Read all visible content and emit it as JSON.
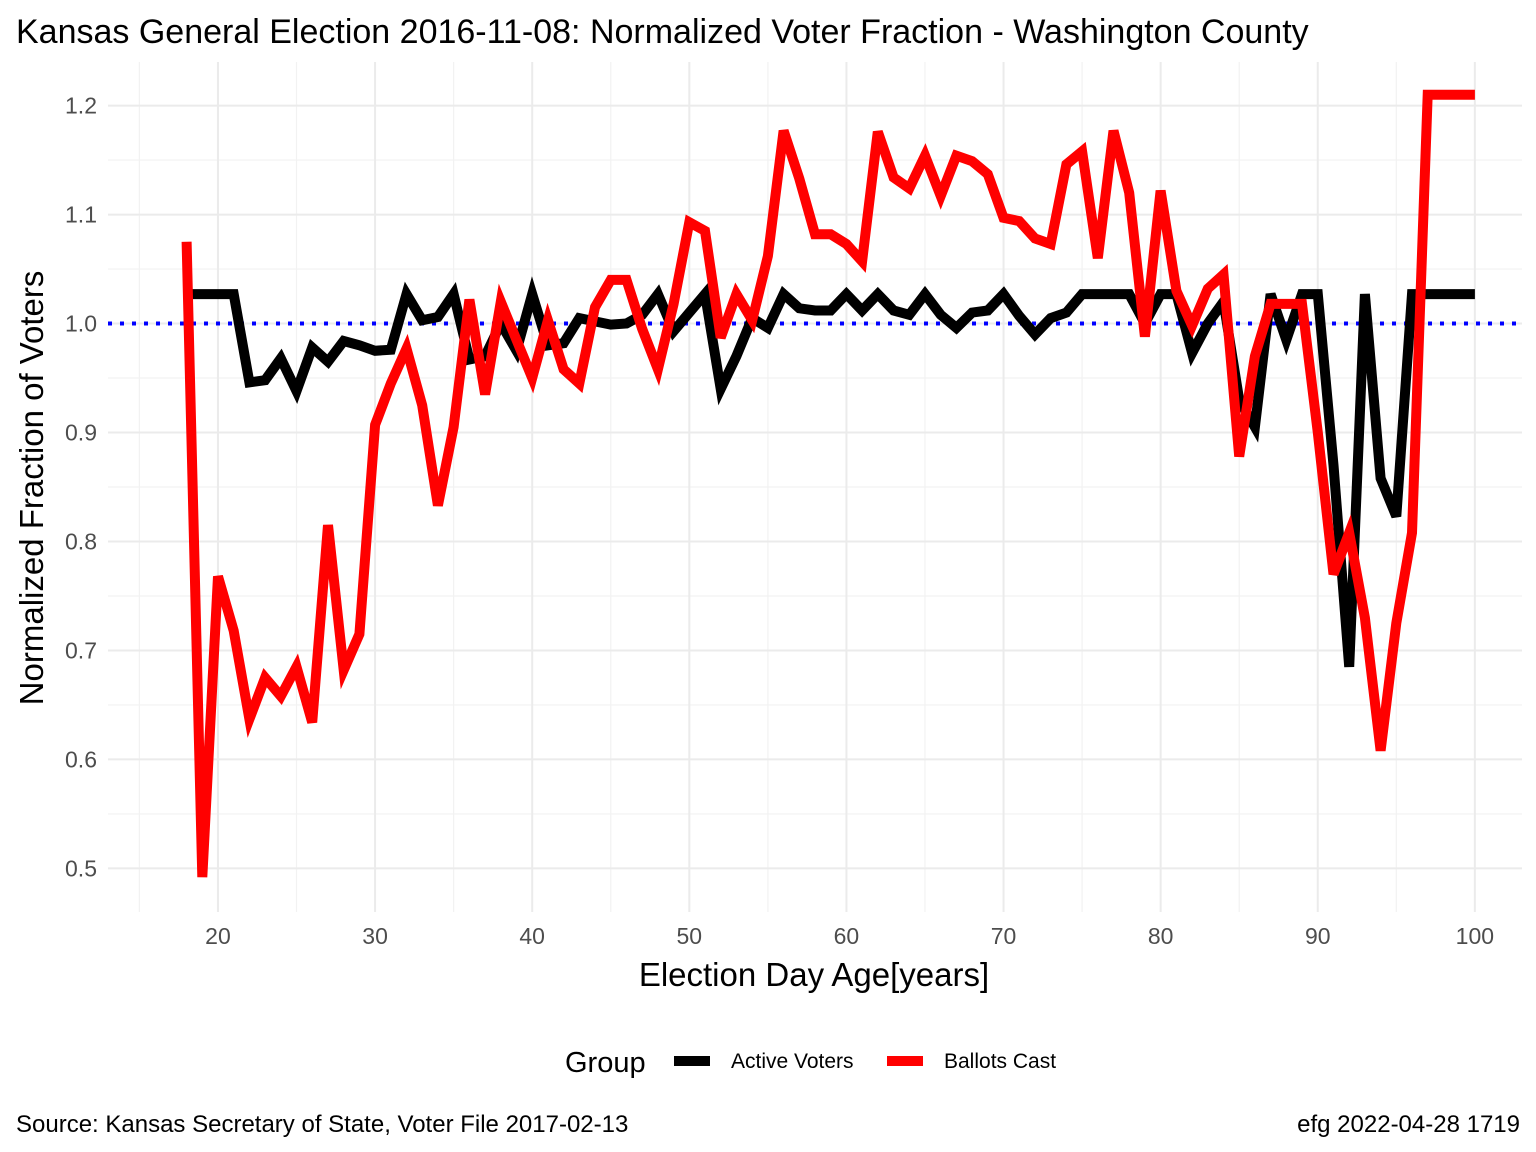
{
  "chart_data": {
    "type": "line",
    "title": "Kansas General Election 2016-11-08:  Normalized Voter Fraction - Washington County",
    "xlabel": "Election Day Age[years]",
    "ylabel": "Normalized Fraction of Voters",
    "xlim": [
      13,
      103
    ],
    "ylim": [
      0.46,
      1.24
    ],
    "x_ticks": [
      20,
      30,
      40,
      50,
      60,
      70,
      80,
      90,
      100
    ],
    "y_ticks": [
      0.5,
      0.6,
      0.7,
      0.8,
      0.9,
      1.0,
      1.1,
      1.2
    ],
    "x_tick_labels": [
      "20",
      "30",
      "40",
      "50",
      "60",
      "70",
      "80",
      "90",
      "100"
    ],
    "y_tick_labels": [
      "0.5",
      "0.6",
      "0.7",
      "0.8",
      "0.9",
      "1.0",
      "1.1",
      "1.2"
    ],
    "grid": true,
    "legend_position": "bottom",
    "legend_title": "Group",
    "reference_line": {
      "y": 1.0,
      "color": "#0000ff",
      "style": "dotted"
    },
    "series": [
      {
        "name": "Active Voters",
        "color": "#000000",
        "x": [
          18,
          19,
          20,
          21,
          22,
          23,
          24,
          25,
          26,
          27,
          28,
          29,
          30,
          31,
          32,
          33,
          34,
          35,
          36,
          37,
          38,
          39,
          40,
          41,
          42,
          43,
          44,
          45,
          46,
          47,
          48,
          49,
          50,
          51,
          52,
          53,
          54,
          55,
          56,
          57,
          58,
          59,
          60,
          61,
          62,
          63,
          64,
          65,
          66,
          67,
          68,
          69,
          70,
          71,
          72,
          73,
          74,
          75,
          76,
          77,
          78,
          79,
          80,
          81,
          82,
          83,
          84,
          85,
          86,
          87,
          88,
          89,
          90,
          91,
          92,
          93,
          94,
          95,
          96,
          97,
          98,
          99,
          100
        ],
        "values": [
          1.027,
          1.027,
          1.027,
          1.027,
          0.946,
          0.948,
          0.968,
          0.938,
          0.978,
          0.965,
          0.984,
          0.98,
          0.975,
          0.976,
          1.027,
          1.003,
          1.006,
          1.027,
          0.967,
          0.97,
          1.0,
          0.975,
          1.027,
          0.98,
          0.982,
          1.005,
          1.002,
          0.999,
          1.0,
          1.008,
          1.027,
          0.993,
          1.01,
          1.027,
          0.94,
          0.97,
          1.005,
          0.996,
          1.027,
          1.014,
          1.012,
          1.012,
          1.027,
          1.012,
          1.027,
          1.012,
          1.008,
          1.027,
          1.008,
          0.996,
          1.01,
          1.012,
          1.027,
          1.007,
          0.99,
          1.005,
          1.01,
          1.027,
          1.027,
          1.027,
          1.027,
          1.0,
          1.027,
          1.027,
          0.973,
          1.0,
          1.02,
          0.93,
          0.905,
          1.027,
          0.985,
          1.027,
          1.027,
          0.87,
          0.685,
          1.027,
          0.858,
          0.823,
          1.027,
          1.027,
          1.027,
          1.027,
          1.027
        ]
      },
      {
        "name": "Ballots Cast",
        "color": "#ff0000",
        "x": [
          18,
          19,
          20,
          21,
          22,
          23,
          24,
          25,
          26,
          27,
          28,
          29,
          30,
          31,
          32,
          33,
          34,
          35,
          36,
          37,
          38,
          39,
          40,
          41,
          42,
          43,
          44,
          45,
          46,
          47,
          48,
          49,
          50,
          51,
          52,
          53,
          54,
          55,
          56,
          57,
          58,
          59,
          60,
          61,
          62,
          63,
          64,
          65,
          66,
          67,
          68,
          69,
          70,
          71,
          72,
          73,
          74,
          75,
          76,
          77,
          78,
          79,
          80,
          81,
          82,
          83,
          84,
          85,
          86,
          87,
          88,
          89,
          90,
          91,
          92,
          93,
          94,
          95,
          96,
          97,
          98,
          99,
          100
        ],
        "values": [
          1.075,
          0.492,
          0.768,
          0.718,
          0.637,
          0.675,
          0.658,
          0.685,
          0.634,
          0.815,
          0.682,
          0.715,
          0.907,
          0.945,
          0.977,
          0.925,
          0.833,
          0.905,
          1.022,
          0.935,
          1.02,
          0.985,
          0.95,
          1.003,
          0.958,
          0.945,
          1.015,
          1.04,
          1.04,
          0.995,
          0.958,
          1.018,
          1.093,
          1.085,
          0.987,
          1.027,
          1.003,
          1.062,
          1.177,
          1.133,
          1.082,
          1.082,
          1.073,
          1.057,
          1.176,
          1.134,
          1.124,
          1.154,
          1.117,
          1.154,
          1.149,
          1.137,
          1.097,
          1.094,
          1.078,
          1.073,
          1.146,
          1.158,
          1.06,
          1.177,
          1.12,
          0.988,
          1.122,
          1.03,
          0.998,
          1.032,
          1.045,
          0.878,
          0.97,
          1.018,
          1.018,
          1.018,
          0.9,
          0.77,
          0.808,
          0.73,
          0.608,
          0.725,
          0.808,
          1.21,
          1.21,
          1.21,
          1.21
        ]
      }
    ],
    "caption_left": "Source:  Kansas Secretary of State, Voter File  2017-02-13",
    "caption_right": "efg 2022-04-28 1719"
  }
}
